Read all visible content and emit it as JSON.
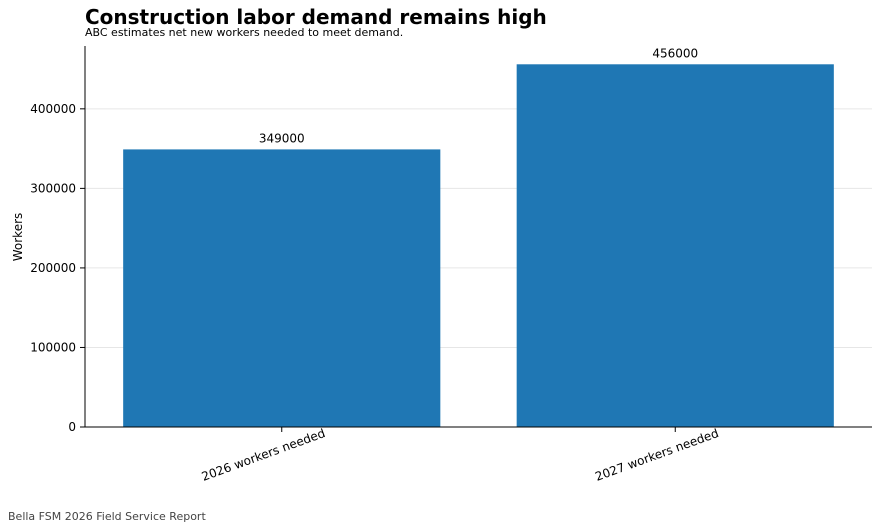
{
  "chart_data": {
    "type": "bar",
    "title": "Construction labor demand remains high",
    "subtitle": "ABC estimates net new workers needed to meet demand.",
    "categories": [
      "2026 workers needed",
      "2027 workers needed"
    ],
    "values": [
      349000,
      456000
    ],
    "data_labels": [
      "349000",
      "456000"
    ],
    "xlabel": "",
    "ylabel": "Workers",
    "ylim": [
      0,
      479000
    ],
    "yticks": [
      0,
      100000,
      200000,
      300000,
      400000
    ],
    "ytick_labels": [
      "0",
      "100000",
      "200000",
      "300000",
      "400000"
    ],
    "grid": "horizontal",
    "bar_color": "#1f77b4"
  },
  "footer": "Bella FSM 2026 Field Service Report"
}
